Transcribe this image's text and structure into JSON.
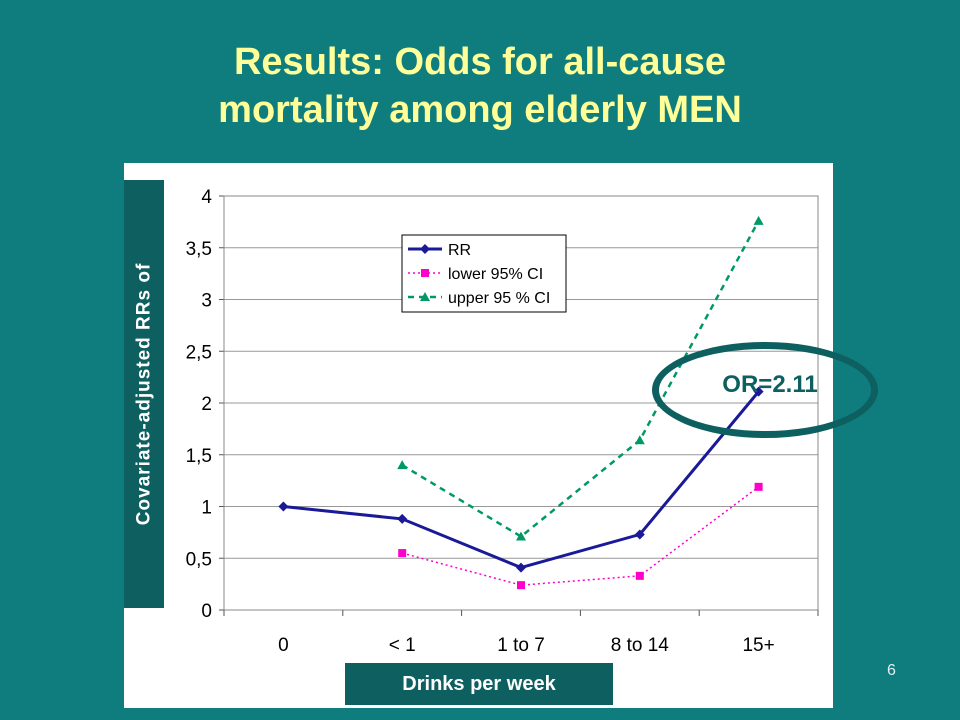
{
  "slide": {
    "title_line1": "Results: Odds for all-cause",
    "title_line2": "mortality among elderly MEN",
    "page_number": "6",
    "callout": "OR=2.11",
    "y_axis_label": "Covariate-adjusted RRs of",
    "x_axis_label": "Drinks per week"
  },
  "chart_data": {
    "type": "line",
    "title": "",
    "xlabel": "Drinks per week",
    "ylabel": "Covariate-adjusted RRs of",
    "categories": [
      "0",
      "< 1",
      "1 to 7",
      "8 to 14",
      "15+"
    ],
    "ylim": [
      0,
      4
    ],
    "yticks": [
      0,
      0.5,
      1,
      1.5,
      2,
      2.5,
      3,
      3.5,
      4
    ],
    "ytick_labels": [
      "0",
      "0,5",
      "1",
      "1,5",
      "2",
      "2,5",
      "3",
      "3,5",
      "4"
    ],
    "grid": "horizontal",
    "legend_position": "top-center",
    "series": [
      {
        "name": "RR",
        "values": [
          1.0,
          0.88,
          0.41,
          0.73,
          2.11
        ],
        "color": "#1a1a99",
        "marker": "diamond",
        "line": "solid"
      },
      {
        "name": "lower 95% CI",
        "values": [
          null,
          0.55,
          0.24,
          0.33,
          1.19
        ],
        "color": "#ff00cc",
        "marker": "square",
        "line": "dotted"
      },
      {
        "name": "upper 95 % CI",
        "values": [
          null,
          1.4,
          0.71,
          1.64,
          3.76
        ],
        "color": "#009966",
        "marker": "triangle",
        "line": "dashed"
      }
    ]
  }
}
